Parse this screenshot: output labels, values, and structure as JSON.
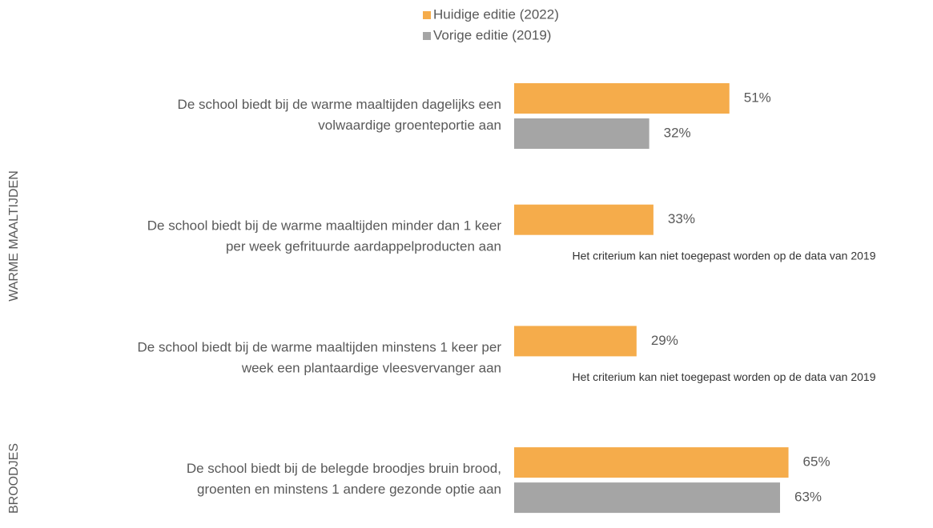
{
  "chart_data": {
    "type": "bar",
    "orientation": "horizontal",
    "categories": [
      [
        "De school biedt bij de warme maaltijden dagelijks een",
        "volwaardige groenteportie aan"
      ],
      [
        "De school biedt bij de warme maaltijden minder dan 1 keer",
        "per week gefrituurde aardappelproducten aan"
      ],
      [
        "De school biedt bij de warme maaltijden minstens 1 keer per",
        "week een plantaardige vleesvervanger aan"
      ],
      [
        "De school biedt bij de belegde broodjes bruin brood,",
        "groenten en minstens 1 andere gezonde optie aan"
      ]
    ],
    "series": [
      {
        "name": "Huidige editie (2022)",
        "color": "#f5ac4b",
        "values": [
          51,
          33,
          29,
          65
        ],
        "value_labels": [
          "51%",
          "33%",
          "29%",
          "65%"
        ]
      },
      {
        "name": "Vorige editie (2019)",
        "color": "#a5a5a5",
        "values": [
          32,
          null,
          null,
          63
        ],
        "value_labels": [
          "32%",
          null,
          null,
          "63%"
        ]
      }
    ],
    "annotations": [
      "Het criterium kan niet toegepast worden op de data van 2019",
      "Het criterium kan niet toegepast worden op de data van 2019"
    ],
    "groups": [
      "WARME MAALTIJDEN",
      "BROODJES"
    ],
    "xlim": [
      0,
      100
    ]
  }
}
